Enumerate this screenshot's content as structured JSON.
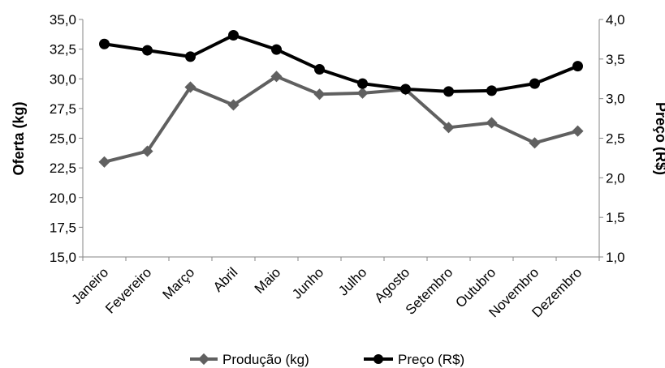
{
  "chart_data": {
    "type": "line",
    "categories": [
      "Janeiro",
      "Fevereiro",
      "Março",
      "Abril",
      "Maio",
      "Junho",
      "Julho",
      "Agosto",
      "Setembro",
      "Outubro",
      "Novembro",
      "Dezembro"
    ],
    "y_left": {
      "label": "Oferta (kg)",
      "min": 15.0,
      "max": 35.0,
      "step": 2.5,
      "tick_labels": [
        "15,0",
        "17,5",
        "20,0",
        "22,5",
        "25,0",
        "27,5",
        "30,0",
        "32,5",
        "35,0"
      ]
    },
    "y_right": {
      "label": "Preço (R$)",
      "min": 1.0,
      "max": 4.0,
      "step": 0.5,
      "tick_labels": [
        "1,0",
        "1,5",
        "2,0",
        "2,5",
        "3,0",
        "3,5",
        "4,0"
      ]
    },
    "series": [
      {
        "name": "Produção (kg)",
        "axis": "left",
        "color": "#606060",
        "marker": "diamond",
        "values": [
          23.0,
          23.9,
          29.3,
          27.8,
          30.2,
          28.7,
          28.8,
          29.1,
          25.9,
          26.3,
          24.6,
          25.6
        ]
      },
      {
        "name": "Preço (R$)",
        "axis": "right",
        "color": "#000000",
        "marker": "circle",
        "values": [
          3.69,
          3.61,
          3.53,
          3.8,
          3.62,
          3.37,
          3.19,
          3.12,
          3.09,
          3.1,
          3.19,
          3.41
        ]
      }
    ],
    "legend_position": "bottom",
    "grid": false
  }
}
